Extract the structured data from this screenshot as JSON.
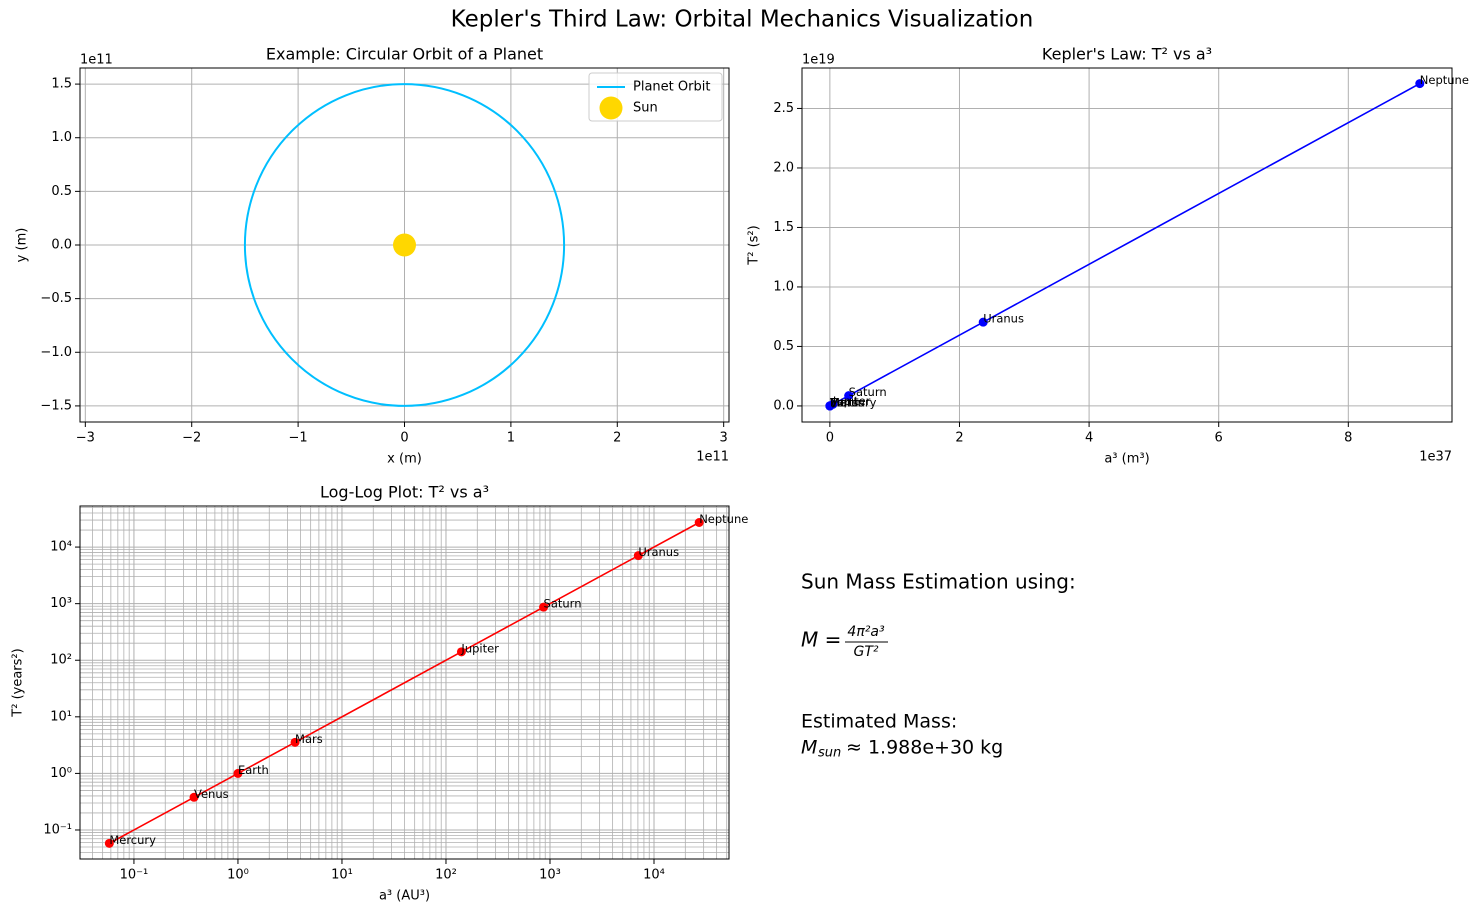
{
  "title": "Kepler's Third Law: Orbital Mechanics Visualization",
  "chart_data": [
    {
      "type": "orbit",
      "title": "Example: Circular Orbit of a Planet",
      "xlabel": "x (m)",
      "ylabel": "y (m)",
      "x_offset": "1e11",
      "y_offset": "1e11",
      "xlim": [
        -305000000000.0,
        305000000000.0
      ],
      "ylim": [
        -165000000000.0,
        165000000000.0
      ],
      "xticks": [
        {
          "value": -300000000000.0,
          "label": "−3"
        },
        {
          "value": -200000000000.0,
          "label": "−2"
        },
        {
          "value": -100000000000.0,
          "label": "−1"
        },
        {
          "value": 0,
          "label": "0"
        },
        {
          "value": 100000000000.0,
          "label": "1"
        },
        {
          "value": 200000000000.0,
          "label": "2"
        },
        {
          "value": 300000000000.0,
          "label": "3"
        }
      ],
      "yticks": [
        {
          "value": -150000000000.0,
          "label": "−1.5"
        },
        {
          "value": -100000000000.0,
          "label": "−1.0"
        },
        {
          "value": -50000000000.0,
          "label": "−0.5"
        },
        {
          "value": 0,
          "label": "0.0"
        },
        {
          "value": 50000000000.0,
          "label": "0.5"
        },
        {
          "value": 100000000000.0,
          "label": "1.0"
        },
        {
          "value": 150000000000.0,
          "label": "1.5"
        }
      ],
      "grid": true,
      "legend": "upper right",
      "orbit": {
        "name": "Planet Orbit",
        "color": "#00bfff",
        "radius": 150000000000.0
      },
      "sun": {
        "name": "Sun",
        "color": "#ffd700",
        "x": 0,
        "y": 0
      }
    },
    {
      "type": "line",
      "title": "Kepler's Law: T² vs a³",
      "xlabel": "a³ (m³)",
      "ylabel": "T² (s²)",
      "x_offset": "1e37",
      "y_offset": "1e19",
      "xlim": [
        -4.3e+36,
        9.6e+37
      ],
      "ylim": [
        -1.35e+18,
        2.84e+19
      ],
      "xticks": [
        0,
        {
          "value": 2e+37,
          "label": "2"
        },
        {
          "value": 4e+37,
          "label": "4"
        },
        {
          "value": 6e+37,
          "label": "6"
        },
        {
          "value": 8e+37,
          "label": "8"
        }
      ],
      "yticks": [
        {
          "value": 0,
          "label": "0.0"
        },
        {
          "value": 5e+18,
          "label": "0.5"
        },
        {
          "value": 1e+19,
          "label": "1.0"
        },
        {
          "value": 1.5e+19,
          "label": "1.5"
        },
        {
          "value": 2e+19,
          "label": "2.0"
        },
        {
          "value": 2.5e+19,
          "label": "2.5"
        }
      ],
      "grid": true,
      "color": "#0000ff",
      "labels": [
        "Mercury",
        "Venus",
        "Earth",
        "Mars",
        "Jupiter",
        "Saturn",
        "Uranus",
        "Neptune"
      ],
      "x": [
        1.94e+32,
        1.266e+33,
        3.348e+33,
        1.185e+34,
        4.714e+35,
        2.903e+36,
        2.366e+37,
        9.103e+37
      ],
      "values": [
        57800000000000.0,
        377000000000000.0,
        996000000000000.0,
        3530000000000000.0,
        1.4e+17,
        8.64e+17,
        7.04e+18,
        2.709e+19
      ]
    },
    {
      "type": "line",
      "title": "Log-Log Plot: T² vs a³",
      "xlabel": "a³ (AU³)",
      "ylabel": "T² (years²)",
      "log": true,
      "xlim": [
        0.0303,
        52600
      ],
      "ylim": [
        0.0307,
        53200
      ],
      "xticks": [
        {
          "value": 0.1,
          "label": "10⁻¹"
        },
        {
          "value": 1,
          "label": "10⁰"
        },
        {
          "value": 10,
          "label": "10¹"
        },
        {
          "value": 100,
          "label": "10²"
        },
        {
          "value": 1000,
          "label": "10³"
        },
        {
          "value": 10000,
          "label": "10⁴"
        }
      ],
      "yticks": [
        {
          "value": 0.1,
          "label": "10⁻¹"
        },
        {
          "value": 1,
          "label": "10⁰"
        },
        {
          "value": 10,
          "label": "10¹"
        },
        {
          "value": 100,
          "label": "10²"
        },
        {
          "value": 1000,
          "label": "10³"
        },
        {
          "value": 10000,
          "label": "10⁴"
        }
      ],
      "grid": "both",
      "color": "#ff0000",
      "labels": [
        "Mercury",
        "Venus",
        "Earth",
        "Mars",
        "Jupiter",
        "Saturn",
        "Uranus",
        "Neptune"
      ],
      "x": [
        0.058,
        0.378,
        1.0,
        3.54,
        140.8,
        867,
        7068,
        27189
      ],
      "values": [
        0.058,
        0.378,
        1.0,
        3.54,
        140.7,
        867.7,
        7068,
        27188
      ]
    }
  ],
  "text_panel": {
    "heading": "Sun Mass Estimation using:",
    "formula_lhs": "M =",
    "formula_numerator": "4π²a³",
    "formula_denominator": "GT²",
    "estimate_heading": "Estimated Mass:",
    "estimate_symbol": "M",
    "estimate_subscript": "sun",
    "estimate_value": "≈ 1.988e+30 kg",
    "estimate_color": "#008000"
  }
}
